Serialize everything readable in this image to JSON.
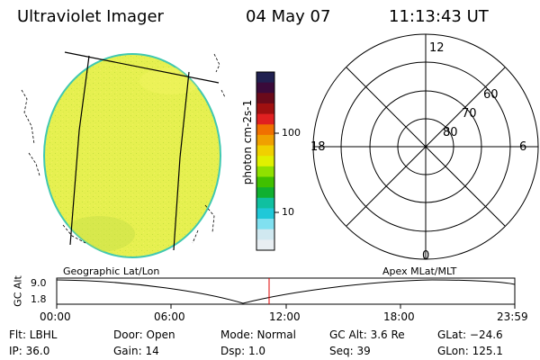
{
  "header": {
    "instrument": "Ultraviolet Imager",
    "date": "04 May 07",
    "time": "11:13:43 UT"
  },
  "colorbar": {
    "label": "photon cm-2s-1",
    "ticks": [
      "100",
      "10"
    ],
    "colors": [
      "#202050",
      "#3a0a3a",
      "#6a0a1a",
      "#a01010",
      "#e02020",
      "#f07000",
      "#f0a000",
      "#f0d000",
      "#e0f000",
      "#90e000",
      "#40c000",
      "#10b030",
      "#10c0a0",
      "#20c8d8",
      "#80e0f0",
      "#d0e8f0",
      "#e8eef2"
    ]
  },
  "polar_grid": {
    "mlt_labels": [
      "12",
      "18",
      "6",
      "0"
    ],
    "mlat_labels": [
      "60",
      "70",
      "80"
    ]
  },
  "altitude_plot": {
    "ylabel": "GC Alt",
    "y_ticks": [
      "9.0",
      "1.8"
    ],
    "left_title": "Geographic Lat/Lon",
    "right_title": "Apex MLat/MLT",
    "x_ticks": [
      "00:00",
      "06:00",
      "12:00",
      "18:00",
      "23:59"
    ],
    "marker_color": "#e00000"
  },
  "info": {
    "filter": "Flt: LBHL",
    "ip": "IP: 36.0",
    "door": "Door: Open",
    "gain": "Gain: 14",
    "mode": "Mode: Normal",
    "dsp": "Dsp:    1.0",
    "gc_alt": "GC Alt: 3.6 Re",
    "seq": "Seq: 39",
    "glat": "GLat: −24.6",
    "glon": "GLon: 125.1"
  },
  "colors": {
    "earth_fill": "#e4f050",
    "earth_edge": "#40c8b0"
  }
}
